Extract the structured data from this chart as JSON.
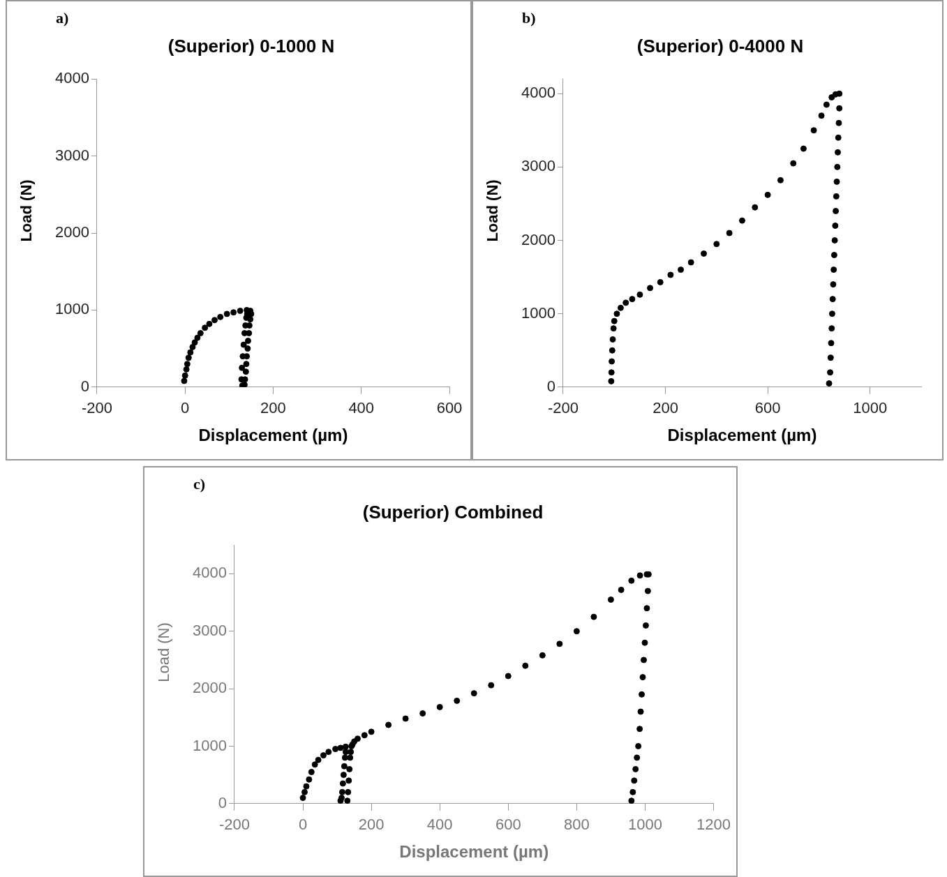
{
  "chart_data": [
    {
      "type": "scatter",
      "title": "(Superior) 0-1000 N",
      "xlabel": "Displacement (µm)",
      "ylabel": "Load (N)",
      "annotations": [
        "a)"
      ],
      "xlim": [
        -200,
        600
      ],
      "xticks": [
        -200,
        0,
        200,
        400,
        600
      ],
      "ylim": [
        0,
        4000
      ],
      "yticks": [
        0,
        1000,
        2000,
        3000,
        4000
      ],
      "grid": false,
      "legend": false,
      "marker": "circle",
      "series": [
        {
          "color": "#000000",
          "x": [
            -2,
            0,
            3,
            5,
            8,
            12,
            17,
            22,
            28,
            35,
            45,
            55,
            67,
            80,
            95,
            110,
            125,
            140,
            148,
            150,
            148,
            146,
            145,
            143,
            142,
            140,
            139,
            138,
            136,
            135,
            130,
            128,
            129,
            131,
            133,
            135,
            137,
            139,
            141
          ],
          "values": [
            80,
            150,
            230,
            300,
            380,
            450,
            520,
            580,
            640,
            700,
            770,
            820,
            870,
            910,
            950,
            970,
            990,
            1000,
            990,
            950,
            880,
            800,
            700,
            600,
            500,
            400,
            300,
            200,
            100,
            30,
            20,
            100,
            250,
            400,
            550,
            700,
            800,
            900,
            950
          ]
        }
      ]
    },
    {
      "type": "scatter",
      "title": "(Superior) 0-4000 N",
      "xlabel": "Displacement (µm)",
      "ylabel": "Load (N)",
      "annotations": [
        "b)"
      ],
      "xlim": [
        -200,
        1200
      ],
      "xticks": [
        -200,
        200,
        600,
        1000
      ],
      "ylim": [
        0,
        4200
      ],
      "yticks": [
        0,
        1000,
        2000,
        3000,
        4000
      ],
      "grid": false,
      "legend": false,
      "marker": "circle",
      "series": [
        {
          "color": "#000000",
          "x": [
            -12,
            -11,
            -10,
            -8,
            -6,
            -3,
            0,
            10,
            25,
            45,
            70,
            100,
            140,
            180,
            220,
            260,
            300,
            350,
            400,
            450,
            500,
            550,
            600,
            650,
            700,
            740,
            780,
            810,
            830,
            850,
            865,
            880,
            880,
            878,
            876,
            874,
            872,
            870,
            868,
            866,
            864,
            862,
            860,
            858,
            856,
            854,
            852,
            850,
            848,
            846,
            844,
            840
          ],
          "values": [
            80,
            200,
            350,
            500,
            650,
            800,
            900,
            1000,
            1080,
            1150,
            1200,
            1260,
            1350,
            1430,
            1530,
            1600,
            1700,
            1820,
            1950,
            2100,
            2270,
            2450,
            2620,
            2820,
            3050,
            3250,
            3500,
            3700,
            3850,
            3950,
            3990,
            4000,
            3800,
            3600,
            3400,
            3200,
            3000,
            2800,
            2600,
            2400,
            2200,
            2000,
            1800,
            1600,
            1400,
            1200,
            1000,
            800,
            600,
            400,
            200,
            50
          ]
        }
      ]
    },
    {
      "type": "scatter",
      "title": "(Superior) Combined",
      "xlabel": "Displacement (µm)",
      "ylabel": "Load (N)",
      "annotations": [
        "c)"
      ],
      "xlim": [
        -200,
        1200
      ],
      "xticks": [
        -200,
        0,
        200,
        400,
        600,
        800,
        1000,
        1200
      ],
      "ylim": [
        0,
        4500
      ],
      "yticks": [
        0,
        1000,
        2000,
        3000,
        4000
      ],
      "grid": false,
      "legend": false,
      "marker": "circle",
      "series": [
        {
          "color": "#000000",
          "x": [
            0,
            5,
            10,
            18,
            25,
            35,
            45,
            60,
            75,
            95,
            110,
            125,
            125,
            123,
            121,
            119,
            117,
            115,
            113,
            110,
            130,
            132,
            134,
            136,
            138,
            140,
            142,
            145,
            150,
            160,
            180,
            200,
            250,
            300,
            350,
            400,
            450,
            500,
            550,
            600,
            650,
            700,
            750,
            800,
            850,
            900,
            930,
            960,
            985,
            1005,
            1010,
            1008,
            1005,
            1002,
            999,
            996,
            993,
            990,
            987,
            984,
            980,
            976,
            972,
            968,
            964,
            960
          ],
          "values": [
            100,
            200,
            300,
            420,
            550,
            680,
            760,
            840,
            900,
            950,
            970,
            990,
            900,
            800,
            650,
            500,
            350,
            200,
            100,
            50,
            50,
            200,
            400,
            600,
            800,
            900,
            1000,
            1030,
            1080,
            1130,
            1190,
            1250,
            1370,
            1480,
            1570,
            1680,
            1790,
            1920,
            2060,
            2220,
            2400,
            2580,
            2780,
            3000,
            3250,
            3550,
            3720,
            3880,
            3970,
            3990,
            3990,
            3700,
            3400,
            3100,
            2800,
            2500,
            2200,
            1900,
            1600,
            1300,
            1000,
            800,
            600,
            400,
            200,
            50
          ]
        }
      ]
    }
  ]
}
